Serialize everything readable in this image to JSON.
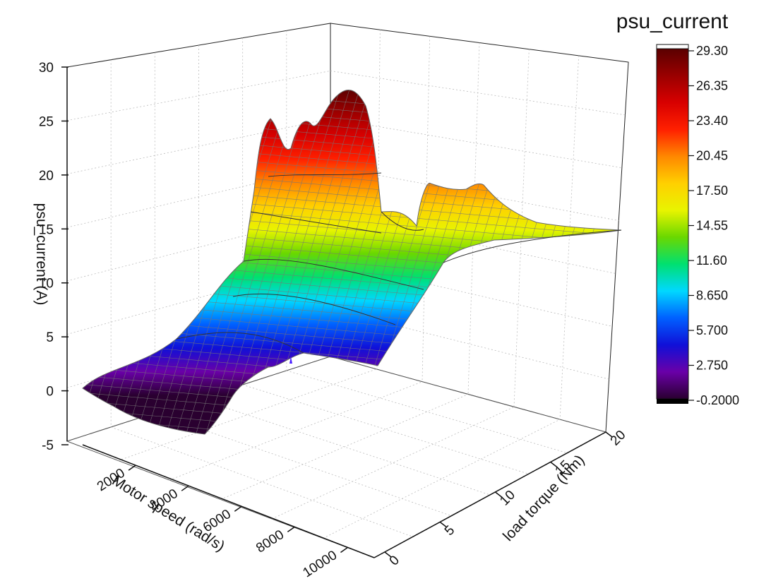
{
  "chart_data": {
    "type": "surface3d",
    "title": "",
    "z_axis": {
      "label": "psu_current (A)",
      "range": [
        -5,
        30
      ],
      "ticks": [
        "-5",
        "0",
        "5",
        "10",
        "15",
        "20",
        "25",
        "30"
      ]
    },
    "x_axis": {
      "label": "Motor speed (rad/s)",
      "range": [
        0,
        11000
      ],
      "ticks": [
        "2000",
        "4000",
        "6000",
        "8000",
        "10000"
      ]
    },
    "y_axis": {
      "label": "load torque (Nm)",
      "range": [
        0,
        20
      ],
      "ticks": [
        "0",
        "5",
        "10",
        "15",
        "20"
      ]
    },
    "colorbar": {
      "title": "psu_current",
      "range": [
        -0.2,
        29.3
      ],
      "labels": [
        "29.30",
        "26.35",
        "23.40",
        "20.45",
        "17.50",
        "14.55",
        "11.60",
        "8.650",
        "5.700",
        "2.750",
        "-0.2000"
      ],
      "colors": [
        "#2a0030",
        "#6a00a8",
        "#1010d8",
        "#0060ff",
        "#00d8ff",
        "#00e070",
        "#6ad800",
        "#e8f400",
        "#ffd000",
        "#ff8800",
        "#ff2000",
        "#d80000",
        "#9a0000",
        "#5a0000"
      ]
    },
    "grid": true,
    "samples": [
      {
        "speed": 0,
        "torque": 0,
        "current": 0.3
      },
      {
        "speed": 6000,
        "torque": 0,
        "current": 0.0
      },
      {
        "speed": 11000,
        "torque": 0,
        "current": 0.5
      },
      {
        "speed": 6000,
        "torque": 10,
        "current": 7.0
      },
      {
        "speed": 11000,
        "torque": 10,
        "current": 14.0
      },
      {
        "speed": 2000,
        "torque": 20,
        "current": 20.0
      },
      {
        "speed": 5000,
        "torque": 16,
        "current": 28.5
      },
      {
        "speed": 11000,
        "torque": 20,
        "current": 15.0
      }
    ]
  }
}
